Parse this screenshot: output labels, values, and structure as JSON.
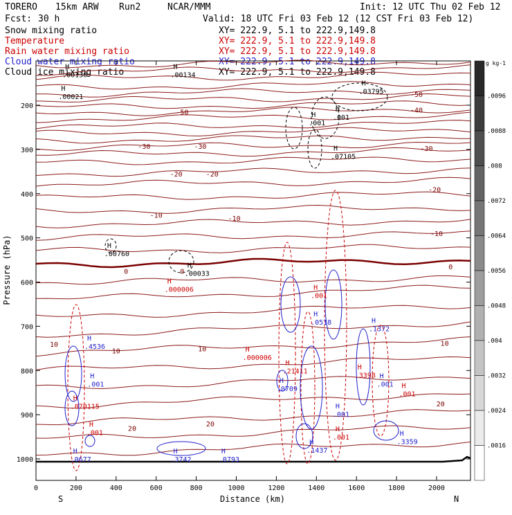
{
  "header": {
    "model_name": "TORERO",
    "resolution": "15km ARW",
    "run": "Run2",
    "org": "NCAR/MMM",
    "init": "Init: 12 UTC Thu 02 Feb 12",
    "forecast_label": "Fcst:",
    "forecast_value": "30 h",
    "valid": "Valid: 18 UTC Fri 03 Feb 12 (12 CST Fri 03 Feb 12)"
  },
  "legend": [
    {
      "name": "Snow mixing ratio",
      "xy": "",
      "color": "#000000"
    },
    {
      "name": "Temperature",
      "xy": "XY= 222.9, 5.1 to 222.9,149.8",
      "color": "#cc0000"
    },
    {
      "name": "Rain water mixing ratio",
      "xy": "XY= 222.9, 5.1 to 222.9,149.8",
      "color": "#cc0000"
    },
    {
      "name": "Cloud water mixing ratio",
      "xy": "XY= 222.9, 5.1 to 222.9,149.8",
      "color": "#1f1fcc"
    },
    {
      "name": "Cloud ice mixing ratio",
      "xy": "XY= 222.9, 5.1 to 222.9,149.8",
      "color": "#000000"
    }
  ],
  "legend_top_xy": "XY= 222.9, 5.1 to 222.9,149.8",
  "chart_data": {
    "type": "cross-section contour",
    "xlabel": "Distance (km)",
    "ylabel": "Pressure (hPa)",
    "xlim": [
      0,
      2170
    ],
    "ylim": [
      1050,
      100
    ],
    "x_ticks": [
      0,
      200,
      400,
      600,
      800,
      1000,
      1200,
      1400,
      1600,
      1800,
      2000
    ],
    "y_ticks": [
      200,
      300,
      400,
      500,
      600,
      700,
      800,
      900,
      1000
    ],
    "end_labels": {
      "left": "S",
      "right": "N"
    },
    "colorbar": {
      "unit": "g kg-1",
      "labels": [
        ".0096",
        ".0088",
        ".008",
        ".0072",
        ".0064",
        ".0056",
        ".0048",
        ".004",
        ".0032",
        ".0024",
        ".0016"
      ]
    },
    "temperature_labels": [
      {
        "x": 730,
        "p": 215,
        "text": "-50"
      },
      {
        "x": 1900,
        "p": 175,
        "text": "-50"
      },
      {
        "x": 1900,
        "p": 210,
        "text": "-40"
      },
      {
        "x": 1950,
        "p": 297,
        "text": "-30"
      },
      {
        "x": 540,
        "p": 292,
        "text": "-30"
      },
      {
        "x": 820,
        "p": 292,
        "text": "-30"
      },
      {
        "x": 700,
        "p": 355,
        "text": "-20"
      },
      {
        "x": 880,
        "p": 355,
        "text": "-20"
      },
      {
        "x": 1990,
        "p": 390,
        "text": "-20"
      },
      {
        "x": 600,
        "p": 448,
        "text": "-10"
      },
      {
        "x": 990,
        "p": 455,
        "text": "-10"
      },
      {
        "x": 2000,
        "p": 490,
        "text": "-10"
      },
      {
        "x": 450,
        "p": 575,
        "text": "0"
      },
      {
        "x": 730,
        "p": 575,
        "text": "0"
      },
      {
        "x": 2070,
        "p": 565,
        "text": "0"
      },
      {
        "x": 90,
        "p": 740,
        "text": "10"
      },
      {
        "x": 400,
        "p": 755,
        "text": "10"
      },
      {
        "x": 830,
        "p": 750,
        "text": "10"
      },
      {
        "x": 2040,
        "p": 738,
        "text": "10"
      },
      {
        "x": 480,
        "p": 930,
        "text": "20"
      },
      {
        "x": 870,
        "p": 920,
        "text": "20"
      },
      {
        "x": 2020,
        "p": 875,
        "text": "20"
      }
    ],
    "maxima": [
      {
        "x": 160,
        "p": 180,
        "text": ".00021",
        "color": "#000000"
      },
      {
        "x": 180,
        "p": 130,
        "text": ".00130",
        "color": "#000000"
      },
      {
        "x": 720,
        "p": 130,
        "text": ".00134",
        "color": "#000000"
      },
      {
        "x": 1660,
        "p": 168,
        "text": ".03795",
        "color": "#000000"
      },
      {
        "x": 1530,
        "p": 227,
        "text": ".001",
        "color": "#000000"
      },
      {
        "x": 1410,
        "p": 239,
        "text": ".001",
        "color": "#000000"
      },
      {
        "x": 1520,
        "p": 315,
        "text": ".07105",
        "color": "#000000"
      },
      {
        "x": 390,
        "p": 535,
        "text": ".00760",
        "color": "#000000"
      },
      {
        "x": 790,
        "p": 580,
        "text": ".00033",
        "color": "#000000"
      },
      {
        "x": 690,
        "p": 616,
        "text": ".000006",
        "color": "#cc0000"
      },
      {
        "x": 1080,
        "p": 770,
        "text": ".000006",
        "color": "#cc0000"
      },
      {
        "x": 1280,
        "p": 800,
        "text": ".21411",
        "color": "#cc0000"
      },
      {
        "x": 1640,
        "p": 810,
        "text": ".3398",
        "color": "#cc0000"
      },
      {
        "x": 220,
        "p": 880,
        "text": ".070115",
        "color": "#cc0000"
      },
      {
        "x": 290,
        "p": 745,
        "text": ".4536",
        "color": "#1f1fcc"
      },
      {
        "x": 1250,
        "p": 840,
        "text": ".0709",
        "color": "#1f1fcc"
      },
      {
        "x": 1420,
        "p": 690,
        "text": ".0518",
        "color": "#1f1fcc"
      },
      {
        "x": 1710,
        "p": 705,
        "text": ".1372",
        "color": "#1f1fcc"
      },
      {
        "x": 1400,
        "p": 980,
        "text": ".1437",
        "color": "#1f1fcc"
      },
      {
        "x": 1850,
        "p": 960,
        "text": ".3359",
        "color": "#1f1fcc"
      },
      {
        "x": 220,
        "p": 1000,
        "text": ".0677",
        "color": "#1f1fcc"
      },
      {
        "x": 720,
        "p": 1000,
        "text": ".3742",
        "color": "#1f1fcc"
      },
      {
        "x": 960,
        "p": 1000,
        "text": ".0793",
        "color": "#1f1fcc"
      },
      {
        "x": 1420,
        "p": 630,
        "text": ".001",
        "color": "#cc0000"
      },
      {
        "x": 305,
        "p": 830,
        "text": ".001",
        "color": "#1f1fcc"
      },
      {
        "x": 300,
        "p": 940,
        "text": ".001",
        "color": "#cc0000"
      },
      {
        "x": 1530,
        "p": 950,
        "text": ".001",
        "color": "#cc0000"
      },
      {
        "x": 1750,
        "p": 830,
        "text": ".001",
        "color": "#1f1fcc"
      },
      {
        "x": 1860,
        "p": 852,
        "text": ".001",
        "color": "#cc0000"
      },
      {
        "x": 1530,
        "p": 898,
        "text": ".001",
        "color": "#1f1fcc"
      }
    ]
  }
}
